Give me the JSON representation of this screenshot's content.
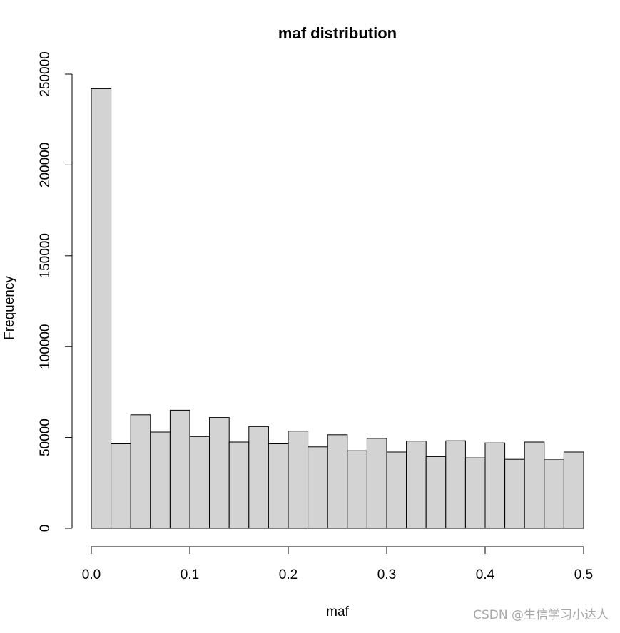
{
  "watermark": "CSDN @生信学习小达人",
  "chart_data": {
    "type": "bar",
    "title": "maf distribution",
    "xlabel": "maf",
    "ylabel": "Frequency",
    "bin_edges": [
      0.0,
      0.02,
      0.04,
      0.06,
      0.08,
      0.1,
      0.12,
      0.14,
      0.16,
      0.18,
      0.2,
      0.22,
      0.24,
      0.26,
      0.28,
      0.3,
      0.32,
      0.34,
      0.36,
      0.38,
      0.4,
      0.42,
      0.44,
      0.46,
      0.48,
      0.5
    ],
    "values": [
      242000,
      46500,
      62500,
      53000,
      65000,
      50500,
      61000,
      47500,
      56000,
      46500,
      53500,
      44800,
      51500,
      42700,
      49500,
      42000,
      48000,
      39500,
      48200,
      38800,
      47000,
      38000,
      47500,
      37700,
      42000
    ],
    "xlim": [
      0.0,
      0.5
    ],
    "ylim": [
      0,
      250000
    ],
    "x_ticks": [
      "0.0",
      "0.1",
      "0.2",
      "0.3",
      "0.4",
      "0.5"
    ],
    "y_ticks": [
      "0",
      "50000",
      "100000",
      "150000",
      "200000",
      "250000"
    ],
    "bar_color": "#d3d3d3",
    "grid": false
  }
}
